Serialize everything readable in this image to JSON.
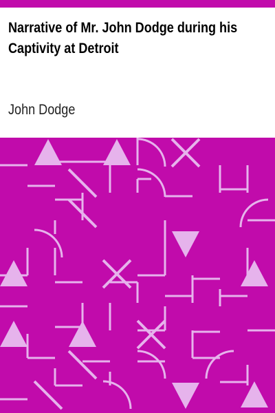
{
  "cover": {
    "title_line1": "Narrative of Mr. John Dodge during his",
    "title_line2": "Captivity at Detroit",
    "author": "John Dodge"
  },
  "colors": {
    "accent": "#c10bab",
    "pattern_light": "#e6b3ec",
    "background": "#ffffff",
    "text": "#000000"
  },
  "pattern": {
    "cell_icons": [
      [
        "blank",
        "tri-up",
        "blank",
        "tri-up",
        "arc-tl",
        "x-cross",
        "blank",
        "blank"
      ],
      [
        "blank",
        "blank",
        "diag",
        "blank",
        "arc-tl",
        "blank",
        "blank",
        "blank"
      ],
      [
        "blank",
        "blank",
        "diag",
        "blank",
        "blank",
        "blank",
        "blank",
        "arc-br"
      ],
      [
        "blank",
        "arc-tl",
        "blank",
        "blank",
        "blank",
        "tri-down",
        "blank",
        "blank"
      ],
      [
        "tri-up",
        "blank",
        "blank",
        "x-cross",
        "blank",
        "blank",
        "blank",
        "tri-up"
      ],
      [
        "blank",
        "blank",
        "blank",
        "blank",
        "blank",
        "blank",
        "blank",
        "blank"
      ],
      [
        "tri-up",
        "blank",
        "tri-up",
        "blank",
        "x-cross",
        "blank",
        "blank",
        "blank"
      ],
      [
        "blank",
        "blank",
        "diag",
        "blank",
        "arc-tl",
        "blank",
        "arc-br",
        "blank"
      ],
      [
        "blank",
        "diag",
        "blank",
        "arc-tl",
        "blank",
        "tri-down",
        "blank",
        "tri-up"
      ]
    ]
  }
}
